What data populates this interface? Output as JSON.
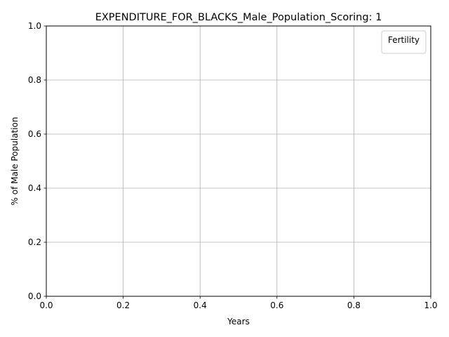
{
  "chart_data": {
    "type": "line",
    "title": "EXPENDITURE_FOR_BLACKS_Male_Population_Scoring: 1",
    "xlabel": "Years",
    "ylabel": "% of Male Population",
    "xlim": [
      0.0,
      1.0
    ],
    "ylim": [
      0.0,
      1.0
    ],
    "x_ticks": [
      "0.0",
      "0.2",
      "0.4",
      "0.6",
      "0.8",
      "1.0"
    ],
    "y_ticks": [
      "0.0",
      "0.2",
      "0.4",
      "0.6",
      "0.8",
      "1.0"
    ],
    "grid": true,
    "legend": {
      "title": "Fertility",
      "placement": "top-right",
      "entries": []
    },
    "series": []
  },
  "colors": {
    "axes": "#000000",
    "grid": "#b0b0b0",
    "legend_border": "#cccccc",
    "background": "#ffffff"
  }
}
